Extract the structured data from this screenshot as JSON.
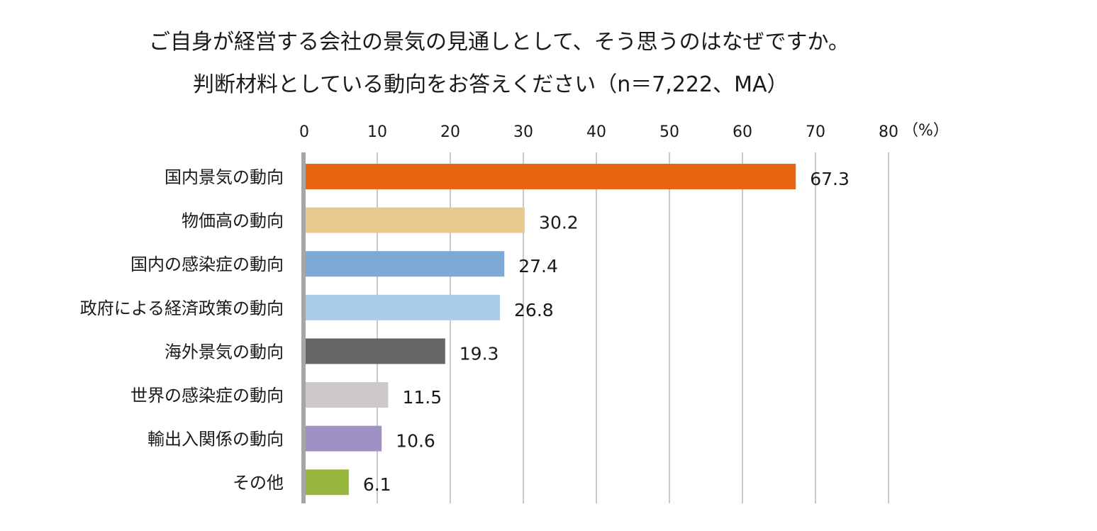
{
  "title": {
    "line1": "ご自身が経営する会社の景気の見通しとして、そう思うのはなぜですか。",
    "line2": "判断材料としている動向をお答えください（n＝7,222、MA）"
  },
  "chart_data": {
    "type": "bar",
    "orientation": "horizontal",
    "unit_label": "（%）",
    "xlim": [
      0,
      80
    ],
    "ticks": [
      0,
      10,
      20,
      30,
      40,
      50,
      60,
      70,
      80
    ],
    "tick_labels": [
      "0",
      "10",
      "20",
      "30",
      "40",
      "50",
      "60",
      "70",
      "80"
    ],
    "grid": true,
    "categories": [
      "国内景気の動向",
      "物価高の動向",
      "国内の感染症の動向",
      "政府による経済政策の動向",
      "海外景気の動向",
      "世界の感染症の動向",
      "輸出入関係の動向",
      "その他"
    ],
    "values": [
      67.3,
      30.2,
      27.4,
      26.8,
      19.3,
      11.5,
      10.6,
      6.1
    ],
    "value_labels": [
      "67.3",
      "30.2",
      "27.4",
      "26.8",
      "19.3",
      "11.5",
      "10.6",
      "6.1"
    ],
    "colors": [
      "#e86512",
      "#e8ca8f",
      "#7ea9d5",
      "#a8cce9",
      "#656565",
      "#cdc9ca",
      "#9f91c4",
      "#98b63e"
    ],
    "axis_color": "#a6a6a6",
    "grid_color": "#c9c9c9"
  }
}
